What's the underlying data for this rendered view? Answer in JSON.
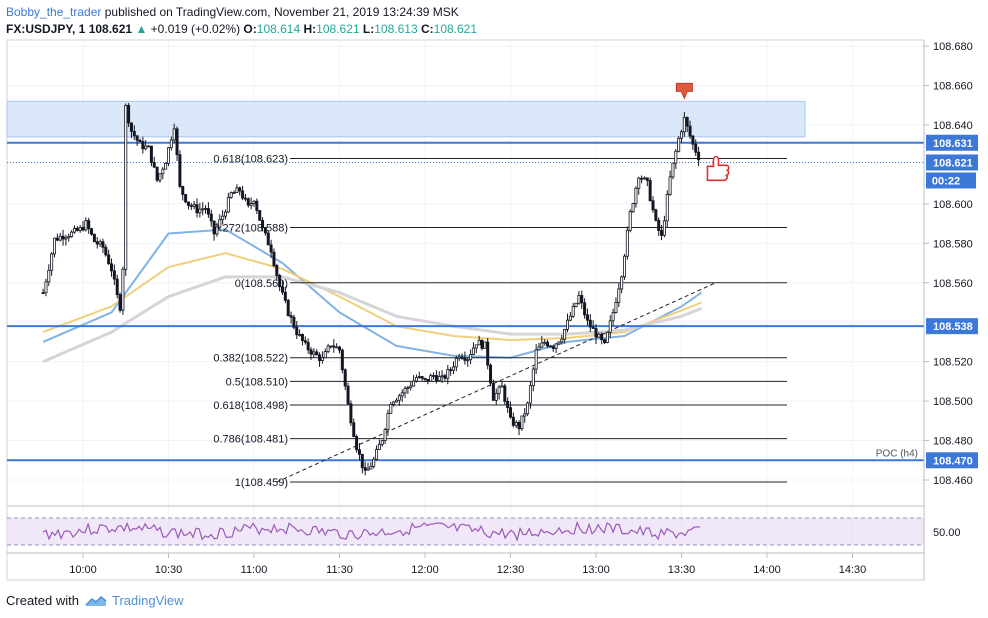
{
  "header": {
    "author": "Bobby_the_trader",
    "published": "published on TradingView.com, November 21, 2019 13:24:39 MSK",
    "symbol": "FX:USDJPY, 1",
    "last": "108.621",
    "change": "+0.019 (+0.02%)",
    "o_label": "O:",
    "o_val": "108.614",
    "h_label": "H:",
    "h_val": "108.621",
    "l_label": "L:",
    "l_val": "108.613",
    "c_label": "C:",
    "c_val": "108.621"
  },
  "footer": {
    "created_with": "Created with",
    "brand": "TradingView"
  },
  "chart_data": {
    "type": "candlestick",
    "x_ticks": [
      "10:00",
      "10:30",
      "11:00",
      "11:30",
      "12:00",
      "12:30",
      "13:00",
      "13:30",
      "14:00",
      "14:30"
    ],
    "y_ticks": [
      "108.680",
      "108.660",
      "108.640",
      "108.600",
      "108.580",
      "108.560",
      "108.520",
      "108.500",
      "108.480",
      "108.460"
    ],
    "ylim": [
      108.453,
      108.684
    ],
    "price_labels": [
      {
        "text": "108.631",
        "value": 108.631,
        "color": "#3c78d8"
      },
      {
        "text": "108.621",
        "value": 108.621,
        "color": "#3c78d8"
      },
      {
        "text": "00:22",
        "value": 108.613,
        "color": "#3c78d8"
      },
      {
        "text": "108.538",
        "value": 108.538,
        "color": "#3c78d8"
      },
      {
        "text": "108.470",
        "value": 108.47,
        "color": "#3c78d8"
      }
    ],
    "horizontal_lines": [
      {
        "value": 108.631,
        "color": "#3c78d8"
      },
      {
        "value": 108.538,
        "color": "#3c78d8"
      },
      {
        "value": 108.47,
        "color": "#3c78d8",
        "label": "POC (h4)"
      }
    ],
    "resistance_zone": [
      108.634,
      108.652
    ],
    "fibonacci": [
      {
        "label": "0.618(108.623)",
        "value": 108.623
      },
      {
        "label": "0.272(108.588)",
        "value": 108.588
      },
      {
        "label": "0(108.560)",
        "value": 108.56
      },
      {
        "label": "0.382(108.522)",
        "value": 108.522
      },
      {
        "label": "0.5(108.510)",
        "value": 108.51
      },
      {
        "label": "0.618(108.498)",
        "value": 108.498
      },
      {
        "label": "0.786(108.481)",
        "value": 108.481
      },
      {
        "label": "1(108.459)",
        "value": 108.459
      }
    ],
    "trendline": {
      "from": [
        "11:08",
        108.459
      ],
      "to": [
        "13:42",
        108.56
      ]
    },
    "rsi": {
      "tick_label": "50.00",
      "level_upper": 70,
      "level_lower": 30
    },
    "candles_points": [
      [
        "09:46",
        108.555
      ],
      [
        "09:48",
        108.568
      ],
      [
        "09:50",
        108.582
      ],
      [
        "09:53",
        108.584
      ],
      [
        "09:56",
        108.585
      ],
      [
        "09:59",
        108.587
      ],
      [
        "10:01",
        108.59
      ],
      [
        "10:04",
        108.581
      ],
      [
        "10:07",
        108.578
      ],
      [
        "10:10",
        108.567
      ],
      [
        "10:12",
        108.553
      ],
      [
        "10:13",
        108.548
      ],
      [
        "10:14",
        108.568
      ],
      [
        "10:15",
        108.649
      ],
      [
        "10:17",
        108.637
      ],
      [
        "10:20",
        108.63
      ],
      [
        "10:23",
        108.628
      ],
      [
        "10:26",
        108.612
      ],
      [
        "10:29",
        108.622
      ],
      [
        "10:32",
        108.64
      ],
      [
        "10:34",
        108.608
      ],
      [
        "10:37",
        108.6
      ],
      [
        "10:40",
        108.597
      ],
      [
        "10:43",
        108.598
      ],
      [
        "10:46",
        108.585
      ],
      [
        "10:49",
        108.594
      ],
      [
        "10:52",
        108.605
      ],
      [
        "10:55",
        108.607
      ],
      [
        "10:58",
        108.598
      ],
      [
        "11:00",
        108.603
      ],
      [
        "11:03",
        108.587
      ],
      [
        "11:06",
        108.577
      ],
      [
        "11:09",
        108.558
      ],
      [
        "11:12",
        108.545
      ],
      [
        "11:15",
        108.535
      ],
      [
        "11:18",
        108.528
      ],
      [
        "11:21",
        108.524
      ],
      [
        "11:24",
        108.521
      ],
      [
        "11:27",
        108.529
      ],
      [
        "11:30",
        108.526
      ],
      [
        "11:33",
        108.498
      ],
      [
        "11:36",
        108.477
      ],
      [
        "11:39",
        108.463
      ],
      [
        "11:42",
        108.47
      ],
      [
        "11:45",
        108.481
      ],
      [
        "11:48",
        108.5
      ],
      [
        "11:51",
        108.503
      ],
      [
        "11:54",
        108.507
      ],
      [
        "11:57",
        108.512
      ],
      [
        "12:00",
        108.51
      ],
      [
        "12:03",
        108.513
      ],
      [
        "12:06",
        108.511
      ],
      [
        "12:09",
        108.516
      ],
      [
        "12:12",
        108.524
      ],
      [
        "12:15",
        108.522
      ],
      [
        "12:18",
        108.53
      ],
      [
        "12:21",
        108.528
      ],
      [
        "12:24",
        108.502
      ],
      [
        "12:27",
        108.507
      ],
      [
        "12:30",
        108.49
      ],
      [
        "12:33",
        108.487
      ],
      [
        "12:36",
        108.498
      ],
      [
        "12:39",
        108.525
      ],
      [
        "12:42",
        108.53
      ],
      [
        "12:45",
        108.528
      ],
      [
        "12:48",
        108.533
      ],
      [
        "12:51",
        108.543
      ],
      [
        "12:54",
        108.553
      ],
      [
        "12:57",
        108.54
      ],
      [
        "13:00",
        108.534
      ],
      [
        "13:03",
        108.528
      ],
      [
        "13:06",
        108.545
      ],
      [
        "13:09",
        108.565
      ],
      [
        "13:12",
        108.595
      ],
      [
        "13:15",
        108.615
      ],
      [
        "13:18",
        108.61
      ],
      [
        "13:21",
        108.59
      ],
      [
        "13:23",
        108.583
      ],
      [
        "13:26",
        108.613
      ],
      [
        "13:29",
        108.633
      ],
      [
        "13:31",
        108.643
      ],
      [
        "13:34",
        108.63
      ],
      [
        "13:37",
        108.621
      ]
    ],
    "ma_series": [
      {
        "color": "#7fb3e6",
        "points": [
          [
            "09:46",
            108.53
          ],
          [
            "10:10",
            108.545
          ],
          [
            "10:30",
            108.585
          ],
          [
            "10:50",
            108.587
          ],
          [
            "11:10",
            108.57
          ],
          [
            "11:30",
            108.545
          ],
          [
            "11:50",
            108.528
          ],
          [
            "12:10",
            108.523
          ],
          [
            "12:30",
            108.522
          ],
          [
            "12:50",
            108.53
          ],
          [
            "13:10",
            108.533
          ],
          [
            "13:30",
            108.548
          ],
          [
            "13:37",
            108.555
          ]
        ]
      },
      {
        "color": "#f0cf7a",
        "points": [
          [
            "09:46",
            108.535
          ],
          [
            "10:10",
            108.548
          ],
          [
            "10:30",
            108.568
          ],
          [
            "10:50",
            108.575
          ],
          [
            "11:10",
            108.567
          ],
          [
            "11:30",
            108.553
          ],
          [
            "11:50",
            108.538
          ],
          [
            "12:10",
            108.533
          ],
          [
            "12:30",
            108.531
          ],
          [
            "12:50",
            108.532
          ],
          [
            "13:10",
            108.535
          ],
          [
            "13:30",
            108.546
          ],
          [
            "13:37",
            108.55
          ]
        ]
      },
      {
        "color": "#d5d5d5",
        "points": [
          [
            "09:46",
            108.52
          ],
          [
            "10:10",
            108.535
          ],
          [
            "10:30",
            108.553
          ],
          [
            "10:50",
            108.563
          ],
          [
            "11:10",
            108.563
          ],
          [
            "11:30",
            108.555
          ],
          [
            "11:50",
            108.543
          ],
          [
            "12:10",
            108.538
          ],
          [
            "12:30",
            108.534
          ],
          [
            "12:50",
            108.534
          ],
          [
            "13:10",
            108.536
          ],
          [
            "13:30",
            108.543
          ],
          [
            "13:37",
            108.547
          ]
        ]
      }
    ]
  }
}
